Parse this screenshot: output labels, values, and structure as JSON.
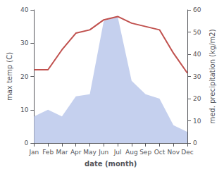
{
  "chart_data": {
    "type": "line",
    "xlabel": "date (month)",
    "ylabel": "max temp (C)",
    "y2label": "med. precipitation (kg/m2)",
    "categories": [
      "Jan",
      "Feb",
      "Mar",
      "Apr",
      "May",
      "Jun",
      "Jul",
      "Aug",
      "Sep",
      "Oct",
      "Nov",
      "Dec"
    ],
    "series": [
      {
        "type": "area",
        "axis": "y2",
        "color": "#c5d0ee",
        "values": [
          12,
          15,
          12,
          21,
          22,
          55,
          57,
          28,
          22,
          20,
          8,
          5
        ]
      },
      {
        "type": "line",
        "axis": "y",
        "color": "#c0504d",
        "values": [
          22,
          22,
          28,
          33,
          34,
          37,
          38,
          36,
          35,
          34,
          27,
          21
        ]
      }
    ],
    "ylim": [
      0,
      40
    ],
    "yticks": [
      0,
      10,
      20,
      30,
      40
    ],
    "y2lim": [
      0,
      60
    ],
    "y2ticks": [
      0,
      10,
      20,
      30,
      40,
      50,
      60
    ],
    "grid": false
  }
}
